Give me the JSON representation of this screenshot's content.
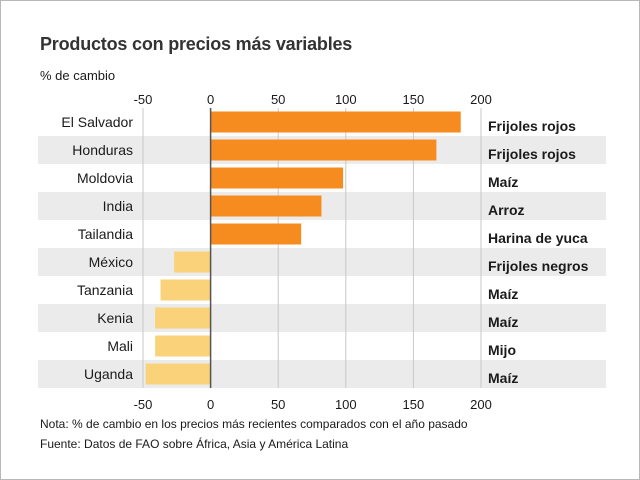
{
  "title": "Productos con precios más variables",
  "unit_label": "% de cambio",
  "note": "Nota: % de cambio en los precios más recientes comparados con el año pasado",
  "source": "Fuente: Datos de FAO sobre África, Asia y América Latina",
  "colors": {
    "positive": "#f68b1f",
    "negative": "#f9d27a",
    "stripe": "#ebebeb",
    "grid": "#c8c8c8",
    "zero_line": "#555555"
  },
  "chart_data": {
    "type": "bar",
    "orientation": "horizontal",
    "title": "Productos con precios más variables",
    "xlabel": "% de cambio",
    "xlim": [
      -50,
      200
    ],
    "xticks": [
      -50,
      0,
      50,
      100,
      150,
      200
    ],
    "categories": [
      "El Salvador",
      "Honduras",
      "Moldovia",
      "India",
      "Tailandia",
      "México",
      "Tanzania",
      "Kenia",
      "Mali",
      "Uganda"
    ],
    "values": [
      185,
      167,
      98,
      82,
      67,
      -27,
      -37,
      -41,
      -41,
      -48
    ],
    "products": [
      "Frijoles rojos",
      "Frijoles rojos",
      "Maíz",
      "Arroz",
      "Harina de yuca",
      "Frijoles negros",
      "Maíz",
      "Maíz",
      "Mijo",
      "Maíz"
    ]
  }
}
